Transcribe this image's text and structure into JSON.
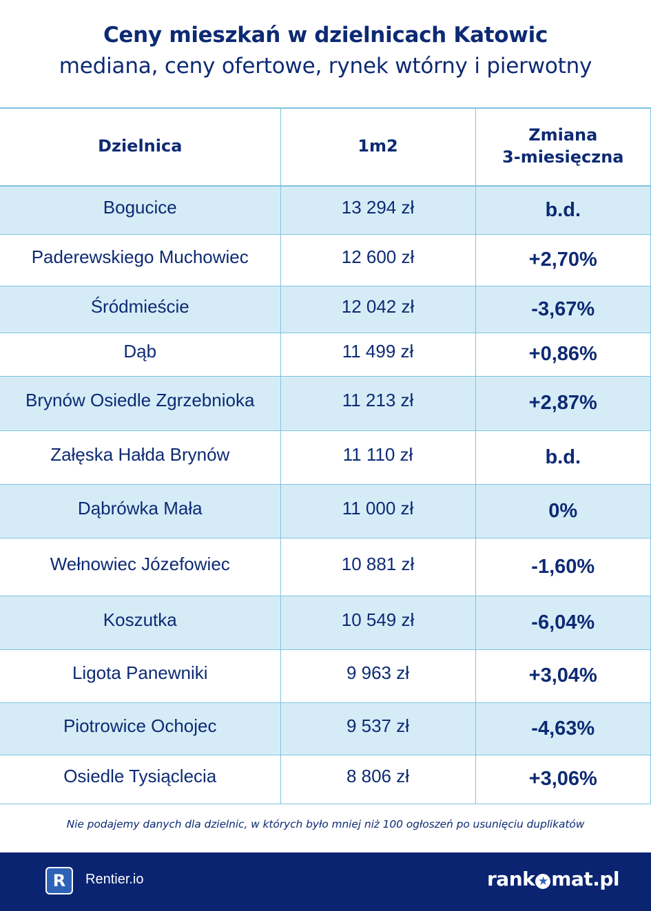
{
  "header": {
    "title": "Ceny mieszkań w dzielnicach Katowic",
    "subtitle": "mediana, ceny ofertowe, rynek wtórny i pierwotny"
  },
  "table": {
    "columns": [
      "Dzielnica",
      "1m2",
      "Zmiana",
      "3-miesięczna"
    ],
    "rows": [
      {
        "district": "Bogucice",
        "price": "13 294 zł",
        "change": "b.d."
      },
      {
        "district": "Paderewskiego Muchowiec",
        "price": "12 600 zł",
        "change": "+2,70%"
      },
      {
        "district": "Śródmieście",
        "price": "12 042 zł",
        "change": "-3,67%"
      },
      {
        "district": "Dąb",
        "price": "11 499 zł",
        "change": "+0,86%"
      },
      {
        "district": "Brynów Osiedle Zgrzebnioka",
        "price": "11 213 zł",
        "change": "+2,87%"
      },
      {
        "district": "Załęska Hałda Brynów",
        "price": "11 110 zł",
        "change": "b.d."
      },
      {
        "district": "Dąbrówka Mała",
        "price": "11 000 zł",
        "change": "0%"
      },
      {
        "district": "Wełnowiec Józefowiec",
        "price": "10 881 zł",
        "change": "-1,60%"
      },
      {
        "district": "Koszutka",
        "price": "10 549 zł",
        "change": "-6,04%"
      },
      {
        "district": "Ligota Panewniki",
        "price": "9 963 zł",
        "change": "+3,04%"
      },
      {
        "district": "Piotrowice Ochojec",
        "price": "9 537 zł",
        "change": "-4,63%"
      },
      {
        "district": "Osiedle Tysiąclecia",
        "price": "8 806 zł",
        "change": "+3,06%"
      }
    ]
  },
  "footnote": "Nie podajemy danych dla dzielnic, w których było mniej niż 100 ogłoszeń po usunięciu duplikatów",
  "footer": {
    "rentier_logo_letter": "R",
    "rentier_name": "Rentier.io",
    "rankomat_left": "rank",
    "rankomat_right": "mat.pl",
    "rankomat_star_icon": "star-icon"
  },
  "colors": {
    "navy": "#0d2a73",
    "footer_bg": "#0a2472",
    "row_shade": "#d5ecf7",
    "grid_line": "#7ec3df",
    "rentier_logo": "#2e62b8"
  }
}
